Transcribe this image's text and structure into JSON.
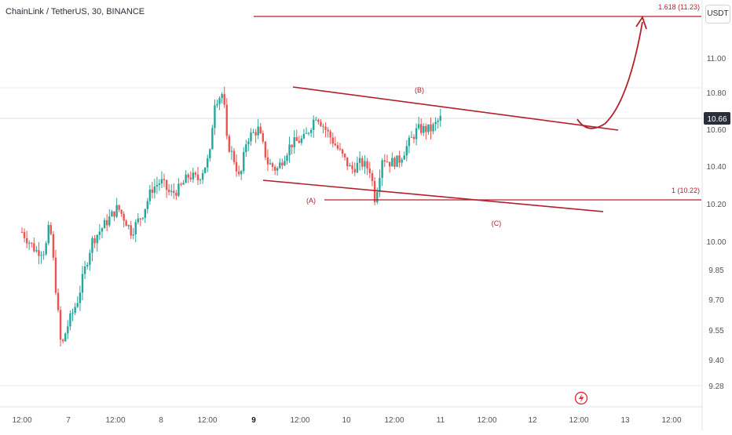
{
  "header": {
    "title": "ChainLink / TetherUS, 30, BINANCE",
    "currency": "USDT"
  },
  "chart_data": {
    "type": "candlestick",
    "symbol": "ChainLink / TetherUS",
    "interval": "30",
    "exchange": "BINANCE",
    "y_ticks": [
      "11.00",
      "10.80",
      "10.60",
      "10.40",
      "10.20",
      "10.00",
      "9.85",
      "9.70",
      "9.55",
      "9.40",
      "9.28"
    ],
    "x_ticks": [
      "12:00",
      "7",
      "12:00",
      "8",
      "12:00",
      "9",
      "12:00",
      "10",
      "12:00",
      "11",
      "12:00",
      "12",
      "12:00",
      "13",
      "12:00"
    ],
    "last_price": "10.66",
    "price_path": [
      {
        "t": 0,
        "p": 10.05
      },
      {
        "t": 0.3,
        "p": 9.95
      },
      {
        "t": 0.5,
        "p": 9.95
      },
      {
        "t": 0.6,
        "p": 10.1
      },
      {
        "t": 0.75,
        "p": 9.7
      },
      {
        "t": 0.85,
        "p": 9.45
      },
      {
        "t": 0.95,
        "p": 9.55
      },
      {
        "t": 1.2,
        "p": 9.7
      },
      {
        "t": 1.5,
        "p": 10.0
      },
      {
        "t": 1.8,
        "p": 10.1
      },
      {
        "t": 2.05,
        "p": 10.18
      },
      {
        "t": 2.2,
        "p": 10.12
      },
      {
        "t": 2.35,
        "p": 10.05
      },
      {
        "t": 2.6,
        "p": 10.15
      },
      {
        "t": 2.8,
        "p": 10.28
      },
      {
        "t": 3.0,
        "p": 10.32
      },
      {
        "t": 3.2,
        "p": 10.25
      },
      {
        "t": 3.4,
        "p": 10.28
      },
      {
        "t": 3.6,
        "p": 10.35
      },
      {
        "t": 3.8,
        "p": 10.33
      },
      {
        "t": 4.05,
        "p": 10.45
      },
      {
        "t": 4.15,
        "p": 10.75
      },
      {
        "t": 4.35,
        "p": 10.8
      },
      {
        "t": 4.4,
        "p": 10.55
      },
      {
        "t": 4.6,
        "p": 10.42
      },
      {
        "t": 4.7,
        "p": 10.32
      },
      {
        "t": 4.85,
        "p": 10.55
      },
      {
        "t": 5.1,
        "p": 10.6
      },
      {
        "t": 5.3,
        "p": 10.42
      },
      {
        "t": 5.5,
        "p": 10.38
      },
      {
        "t": 5.8,
        "p": 10.52
      },
      {
        "t": 6.1,
        "p": 10.55
      },
      {
        "t": 6.35,
        "p": 10.68
      },
      {
        "t": 6.6,
        "p": 10.58
      },
      {
        "t": 6.85,
        "p": 10.48
      },
      {
        "t": 7.1,
        "p": 10.38
      },
      {
        "t": 7.3,
        "p": 10.42
      },
      {
        "t": 7.5,
        "p": 10.38
      },
      {
        "t": 7.6,
        "p": 10.22
      },
      {
        "t": 7.75,
        "p": 10.45
      },
      {
        "t": 7.9,
        "p": 10.42
      },
      {
        "t": 8.1,
        "p": 10.43
      },
      {
        "t": 8.3,
        "p": 10.52
      },
      {
        "t": 8.5,
        "p": 10.6
      },
      {
        "t": 8.8,
        "p": 10.6
      },
      {
        "t": 9.0,
        "p": 10.66
      }
    ]
  },
  "annotations": {
    "wave_a": "(A)",
    "wave_b": "(B)",
    "wave_c": "(C)",
    "fib_1618": "1.618 (11.23)",
    "fib_1": "1 (10.22)"
  },
  "colors": {
    "up": "#26a69a",
    "down": "#ef5350",
    "annotation": "#b2202b",
    "price_tag": "#2a2e39"
  }
}
